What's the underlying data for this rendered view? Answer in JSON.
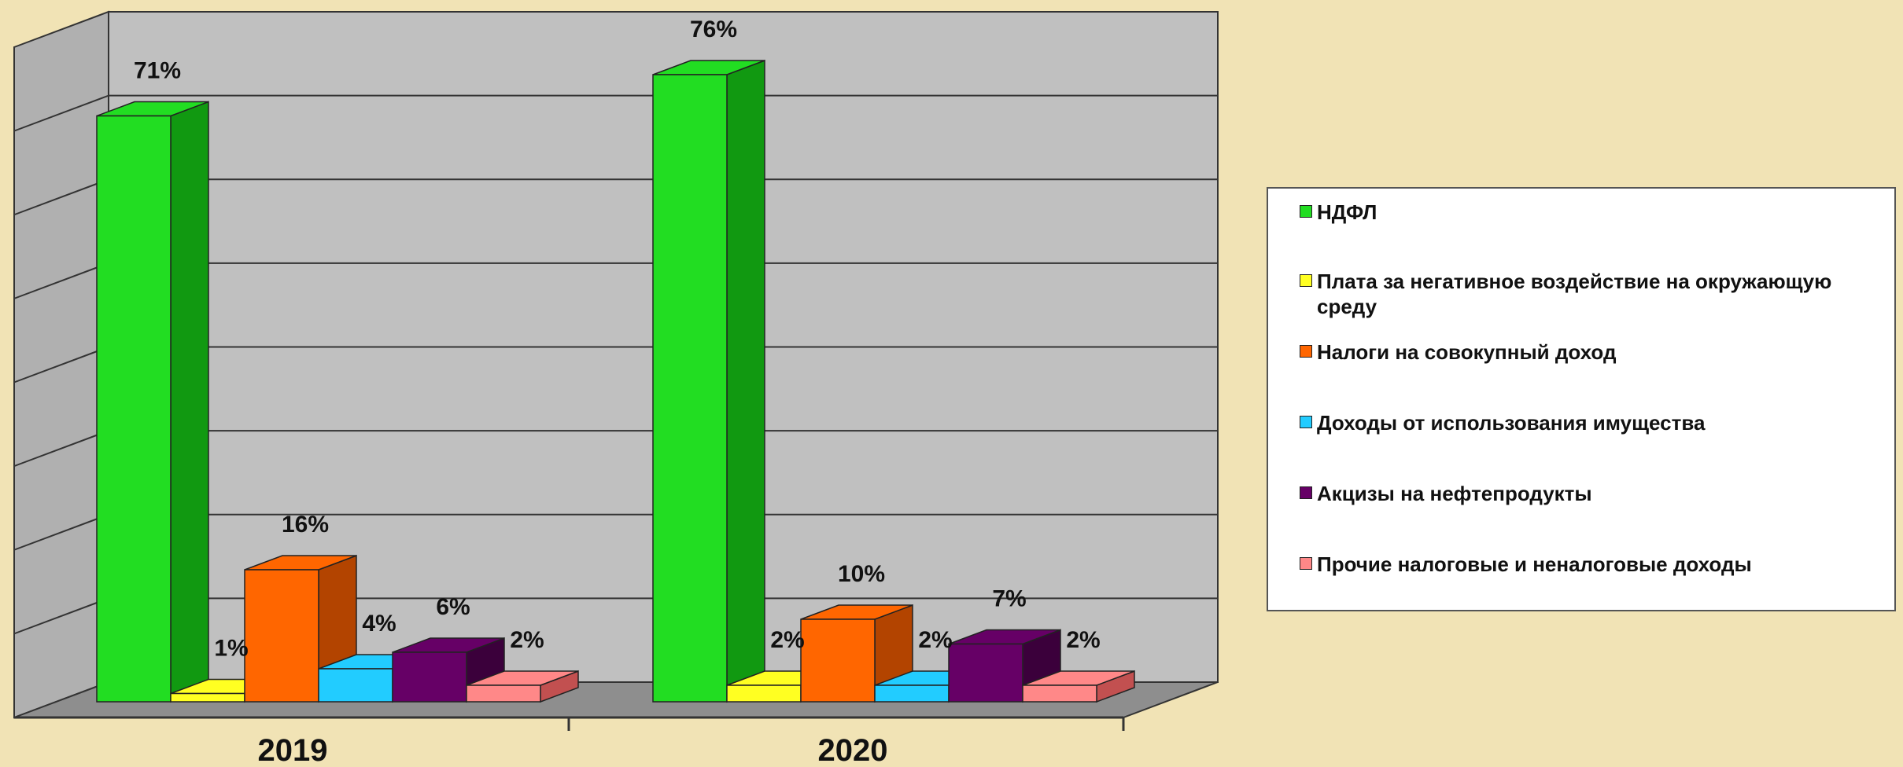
{
  "chart_data": {
    "type": "bar",
    "categories": [
      "2019",
      "2020"
    ],
    "ylim": [
      0,
      80
    ],
    "grid": true,
    "legend_position": "right",
    "series": [
      {
        "name": "НДФЛ",
        "color": "#22dd22",
        "side_color": "#119911",
        "values": [
          71,
          76
        ],
        "labels": [
          "71%",
          "76%"
        ]
      },
      {
        "name": "Плата за негативное воздействие на окружающую среду",
        "color": "#ffff22",
        "side_color": "#b7b700",
        "values": [
          1,
          2
        ],
        "labels": [
          "1%",
          "2%"
        ]
      },
      {
        "name": "Налоги на совокупный доход",
        "color": "#ff6600",
        "side_color": "#b34400",
        "values": [
          16,
          10
        ],
        "labels": [
          "16%",
          "10%"
        ]
      },
      {
        "name": "Доходы от использования имущества",
        "color": "#22ccff",
        "side_color": "#0d88b3",
        "values": [
          4,
          2
        ],
        "labels": [
          "4%",
          "2%"
        ]
      },
      {
        "name": "Акцизы на нефтепродукты",
        "color": "#660066",
        "side_color": "#3b003b",
        "values": [
          6,
          7
        ],
        "labels": [
          "6%",
          "7%"
        ]
      },
      {
        "name": "Прочие налоговые и неналоговые доходы",
        "color": "#ff8888",
        "side_color": "#c25050",
        "values": [
          2,
          2
        ],
        "labels": [
          "2%",
          "2%"
        ]
      }
    ]
  },
  "legend": {
    "items": [
      "НДФЛ",
      "Плата за негативное воздействие на окружающую среду",
      "Налоги на совокупный доход",
      "Доходы от использования имущества",
      "Акцизы на нефтепродукты",
      "Прочие налоговые и неналоговые доходы"
    ]
  }
}
